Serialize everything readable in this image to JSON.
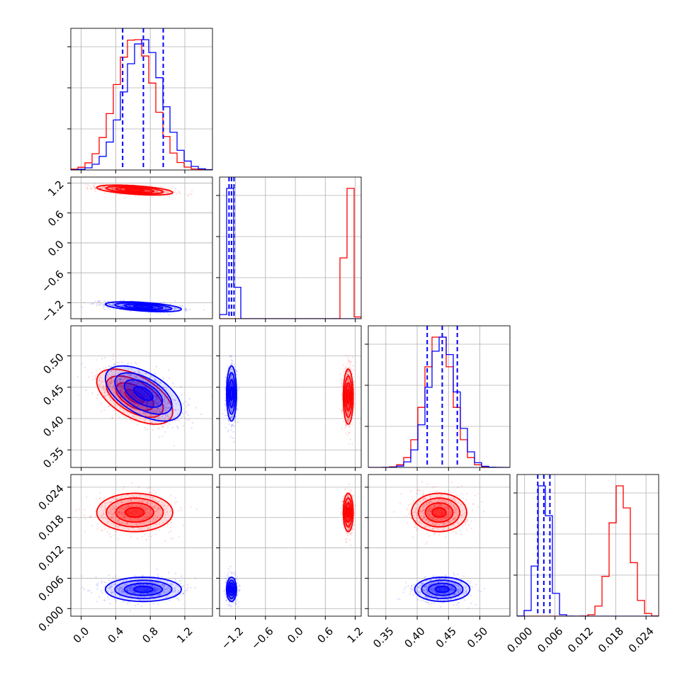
{
  "colors": {
    "series_a": "#ff0000",
    "series_b": "#0000ff",
    "grid": "#b0b0b0",
    "frame": "#000000"
  },
  "chart_data": {
    "type": "corner",
    "grid": true,
    "parameters": [
      {
        "range": [
          -0.12,
          1.52
        ],
        "ticks": [
          "0.0",
          "0.4",
          "0.8",
          "1.2"
        ],
        "tick_values": [
          0.0,
          0.4,
          0.8,
          1.2
        ]
      },
      {
        "range": [
          -1.52,
          1.32
        ],
        "ticks": [
          "−1.2",
          "−0.6",
          "0.0",
          "0.6",
          "1.2"
        ],
        "tick_values": [
          -1.2,
          -0.6,
          0.0,
          0.6,
          1.2
        ]
      },
      {
        "range": [
          0.322,
          0.548
        ],
        "ticks": [
          "0.35",
          "0.40",
          "0.45",
          "0.50"
        ],
        "tick_values": [
          0.35,
          0.4,
          0.45,
          0.5
        ]
      },
      {
        "range": [
          -0.0015,
          0.0265
        ],
        "ticks": [
          "0.000",
          "0.006",
          "0.012",
          "0.018",
          "0.024"
        ],
        "tick_values": [
          0.0,
          0.006,
          0.012,
          0.018,
          0.024
        ]
      }
    ],
    "series": [
      {
        "color": "#ff0000",
        "mean": [
          0.62,
          1.06,
          0.435,
          0.019
        ],
        "sd": [
          0.22,
          0.05,
          0.022,
          0.0019
        ],
        "corr": {
          "0-1": -0.5,
          "0-2": -0.55
        }
      },
      {
        "color": "#0000ff",
        "mean": [
          0.72,
          -1.28,
          0.44,
          0.0038
        ],
        "sd": [
          0.22,
          0.05,
          0.022,
          0.0012
        ],
        "corr": {
          "0-1": -0.5,
          "0-2": -0.55
        },
        "quantiles": [
          [
            0.48,
            0.72,
            0.95
          ],
          [
            -1.33,
            -1.28,
            -1.23
          ],
          [
            0.416,
            0.44,
            0.464
          ],
          [
            0.0026,
            0.0038,
            0.005
          ]
        ]
      }
    ]
  }
}
